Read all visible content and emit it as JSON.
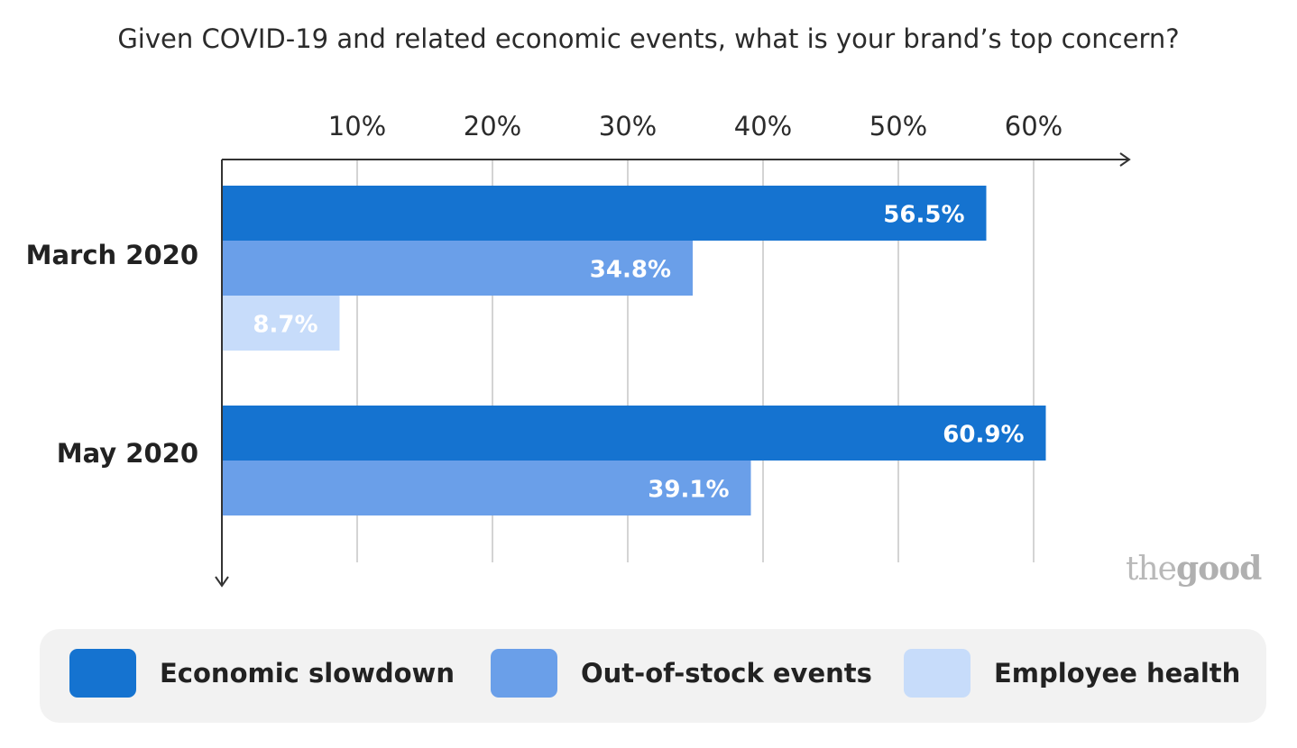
{
  "chart_data": {
    "type": "bar",
    "orientation": "horizontal",
    "title": "Given COVID-19 and related economic events, what is your brand’s top concern?",
    "categories": [
      "March 2020",
      "May 2020"
    ],
    "series": [
      {
        "name": "Economic slowdown",
        "color": "#1573d0",
        "values": [
          56.5,
          60.9
        ],
        "labels": [
          "56.5%",
          "60.9%"
        ]
      },
      {
        "name": "Out-of-stock events",
        "color": "#6a9fe9",
        "values": [
          34.8,
          39.1
        ],
        "labels": [
          "34.8%",
          "39.1%"
        ]
      },
      {
        "name": "Employee health",
        "color": "#c7dcfa",
        "values": [
          8.7,
          null
        ],
        "labels": [
          "8.7%",
          ""
        ]
      }
    ],
    "x_ticks": [
      "10%",
      "20%",
      "30%",
      "40%",
      "50%",
      "60%"
    ],
    "x_tick_values": [
      10,
      20,
      30,
      40,
      50,
      60
    ],
    "xlim": [
      0,
      67
    ],
    "grid": true,
    "legend_position": "bottom"
  },
  "watermark": {
    "prefix": "the",
    "suffix": "good"
  }
}
